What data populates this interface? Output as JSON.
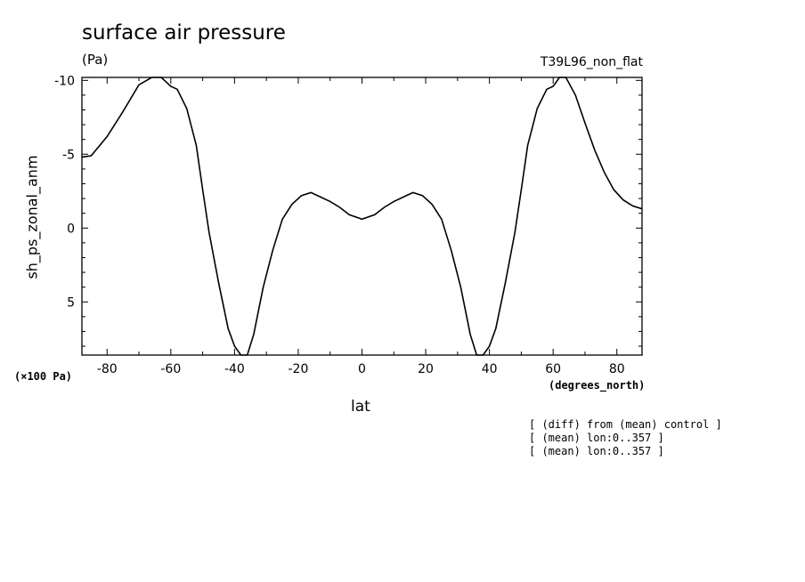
{
  "chart_data": {
    "type": "line",
    "title": "surface air pressure",
    "units": "(Pa)",
    "run_label": "T39L96_non_flat",
    "xlabel": "lat",
    "x_units": "(degrees_north)",
    "ylabel": "sh_ps_zonal_anm",
    "y_scale_note": "(×100 Pa)",
    "xlim": [
      -87.9,
      87.9
    ],
    "ylim": [
      8.6,
      -10.2
    ],
    "y_inverted": true,
    "x_ticks": [
      -80,
      -60,
      -40,
      -20,
      0,
      20,
      40,
      60,
      80
    ],
    "x_tick_labels": [
      "-80",
      "-60",
      "-40",
      "-20",
      "0",
      "20",
      "40",
      "60",
      "80"
    ],
    "y_ticks": [
      -10,
      -5,
      0,
      5
    ],
    "y_tick_labels": [
      "-10",
      "-5",
      "0",
      "5"
    ],
    "grid": false,
    "series": [
      {
        "x": [
          -87.9,
          -85,
          -80,
          -75,
          -70,
          -66,
          -63,
          -60,
          -58,
          -55,
          -52,
          -50,
          -48,
          -45,
          -42,
          -40,
          -38,
          -36,
          -34,
          -31,
          -28,
          -25,
          -22,
          -19,
          -16,
          -13,
          -10,
          -7,
          -4,
          0,
          4,
          7,
          10,
          13,
          16,
          19,
          22,
          25,
          28,
          31,
          34,
          36,
          38,
          40,
          42,
          45,
          48,
          50,
          52,
          55,
          58,
          60,
          62,
          64,
          67,
          70,
          73,
          76,
          79,
          82,
          85,
          87.9
        ],
        "y": [
          -4.8,
          -4.9,
          -6.2,
          -7.9,
          -9.7,
          -10.2,
          -10.2,
          -9.6,
          -9.4,
          -8.1,
          -5.6,
          -2.6,
          0.3,
          3.7,
          6.8,
          8.0,
          8.6,
          8.6,
          7.2,
          4.0,
          1.5,
          -0.6,
          -1.6,
          -2.2,
          -2.4,
          -2.1,
          -1.8,
          -1.4,
          -0.9,
          -0.6,
          -0.9,
          -1.4,
          -1.8,
          -2.1,
          -2.4,
          -2.2,
          -1.6,
          -0.6,
          1.5,
          4.0,
          7.2,
          8.6,
          8.6,
          8.0,
          6.8,
          3.7,
          0.3,
          -2.6,
          -5.6,
          -8.1,
          -9.4,
          -9.6,
          -10.2,
          -10.2,
          -9.0,
          -7.1,
          -5.3,
          -3.8,
          -2.6,
          -1.9,
          -1.5,
          -1.3
        ]
      }
    ]
  },
  "notes": [
    "[ (diff) from (mean) control ]",
    "[ (mean) lon:0..357 ]",
    "[ (mean) lon:0..357 ]"
  ]
}
